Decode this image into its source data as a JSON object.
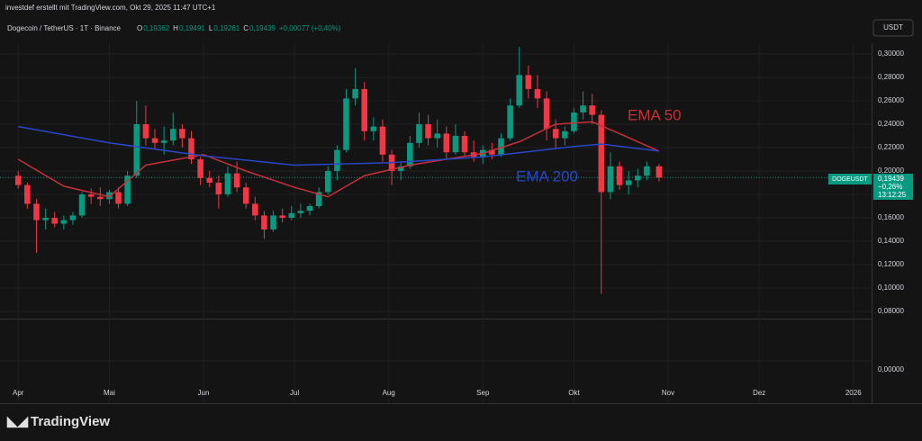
{
  "header": {
    "credit": "investdef erstellt mit TradingView.com, Okt 29, 2025 11:47 UTC+1"
  },
  "legend": {
    "symbol": "Dogecoin / TetherUS · 1T · Binance",
    "ohlc": [
      {
        "label": "O",
        "value": "0,19362"
      },
      {
        "label": "H",
        "value": "0,19491"
      },
      {
        "label": "L",
        "value": "0,19261"
      },
      {
        "label": "C",
        "value": "0,19439"
      }
    ],
    "change": "+0,00077 (+0,40%)"
  },
  "currency": "USDT",
  "price_tag": {
    "symbol": "DOGEUSDT",
    "price": "0,19439",
    "change": "−0,26%",
    "countdown": "13:12:25"
  },
  "footer": {
    "brand": "TradingView"
  },
  "chart_data": {
    "type": "candlestick",
    "up_color": "#089981",
    "down_color": "#f23645",
    "x": [
      "2025-04-01",
      "2025-04-04",
      "2025-04-07",
      "2025-04-10",
      "2025-04-13",
      "2025-04-16",
      "2025-04-19",
      "2025-04-22",
      "2025-04-25",
      "2025-04-28",
      "2025-05-01",
      "2025-05-04",
      "2025-05-07",
      "2025-05-10",
      "2025-05-13",
      "2025-05-16",
      "2025-05-19",
      "2025-05-22",
      "2025-05-25",
      "2025-05-28",
      "2025-05-31",
      "2025-06-03",
      "2025-06-06",
      "2025-06-09",
      "2025-06-12",
      "2025-06-15",
      "2025-06-18",
      "2025-06-21",
      "2025-06-24",
      "2025-06-27",
      "2025-06-30",
      "2025-07-03",
      "2025-07-06",
      "2025-07-09",
      "2025-07-12",
      "2025-07-15",
      "2025-07-18",
      "2025-07-21",
      "2025-07-24",
      "2025-07-27",
      "2025-07-30",
      "2025-08-02",
      "2025-08-05",
      "2025-08-08",
      "2025-08-11",
      "2025-08-14",
      "2025-08-17",
      "2025-08-20",
      "2025-08-23",
      "2025-08-26",
      "2025-08-29",
      "2025-09-01",
      "2025-09-04",
      "2025-09-07",
      "2025-09-10",
      "2025-09-13",
      "2025-09-16",
      "2025-09-19",
      "2025-09-22",
      "2025-09-25",
      "2025-09-28",
      "2025-10-01",
      "2025-10-04",
      "2025-10-07",
      "2025-10-10",
      "2025-10-13",
      "2025-10-16",
      "2025-10-19",
      "2025-10-22",
      "2025-10-25",
      "2025-10-29"
    ],
    "open": [
      0.196,
      0.188,
      0.172,
      0.158,
      0.16,
      0.155,
      0.158,
      0.162,
      0.18,
      0.178,
      0.176,
      0.182,
      0.172,
      0.196,
      0.24,
      0.228,
      0.224,
      0.226,
      0.236,
      0.228,
      0.21,
      0.194,
      0.19,
      0.18,
      0.198,
      0.186,
      0.172,
      0.162,
      0.15,
      0.162,
      0.16,
      0.164,
      0.166,
      0.17,
      0.182,
      0.2,
      0.218,
      0.262,
      0.27,
      0.234,
      0.238,
      0.214,
      0.2,
      0.204,
      0.224,
      0.24,
      0.228,
      0.232,
      0.216,
      0.23,
      0.216,
      0.212,
      0.218,
      0.214,
      0.228,
      0.256,
      0.282,
      0.27,
      0.262,
      0.236,
      0.228,
      0.234,
      0.25,
      0.256,
      0.248,
      0.182,
      0.204,
      0.188,
      0.192,
      0.196,
      0.204
    ],
    "high": [
      0.2,
      0.19,
      0.176,
      0.168,
      0.165,
      0.162,
      0.165,
      0.182,
      0.185,
      0.186,
      0.184,
      0.186,
      0.2,
      0.26,
      0.256,
      0.236,
      0.238,
      0.25,
      0.24,
      0.234,
      0.212,
      0.2,
      0.196,
      0.204,
      0.208,
      0.19,
      0.178,
      0.166,
      0.166,
      0.168,
      0.17,
      0.172,
      0.172,
      0.186,
      0.204,
      0.222,
      0.27,
      0.288,
      0.276,
      0.246,
      0.244,
      0.218,
      0.208,
      0.23,
      0.25,
      0.248,
      0.244,
      0.238,
      0.24,
      0.234,
      0.226,
      0.222,
      0.224,
      0.232,
      0.262,
      0.306,
      0.29,
      0.282,
      0.268,
      0.244,
      0.238,
      0.254,
      0.268,
      0.266,
      0.252,
      0.216,
      0.208,
      0.2,
      0.202,
      0.208,
      0.206
    ],
    "low": [
      0.185,
      0.168,
      0.13,
      0.15,
      0.152,
      0.15,
      0.154,
      0.16,
      0.172,
      0.17,
      0.172,
      0.168,
      0.17,
      0.194,
      0.222,
      0.218,
      0.214,
      0.222,
      0.22,
      0.206,
      0.188,
      0.186,
      0.168,
      0.178,
      0.182,
      0.168,
      0.158,
      0.142,
      0.148,
      0.156,
      0.158,
      0.16,
      0.162,
      0.168,
      0.18,
      0.192,
      0.216,
      0.256,
      0.226,
      0.226,
      0.208,
      0.188,
      0.192,
      0.202,
      0.22,
      0.222,
      0.22,
      0.21,
      0.214,
      0.212,
      0.208,
      0.206,
      0.21,
      0.212,
      0.226,
      0.254,
      0.262,
      0.254,
      0.226,
      0.22,
      0.222,
      0.232,
      0.244,
      0.24,
      0.095,
      0.176,
      0.184,
      0.18,
      0.186,
      0.192,
      0.191
    ],
    "close": [
      0.188,
      0.172,
      0.158,
      0.16,
      0.155,
      0.158,
      0.162,
      0.18,
      0.178,
      0.176,
      0.182,
      0.172,
      0.196,
      0.24,
      0.228,
      0.224,
      0.226,
      0.236,
      0.228,
      0.21,
      0.194,
      0.19,
      0.18,
      0.198,
      0.186,
      0.172,
      0.162,
      0.15,
      0.162,
      0.16,
      0.164,
      0.166,
      0.17,
      0.182,
      0.2,
      0.218,
      0.262,
      0.27,
      0.234,
      0.238,
      0.214,
      0.2,
      0.204,
      0.224,
      0.24,
      0.228,
      0.232,
      0.216,
      0.23,
      0.216,
      0.212,
      0.218,
      0.214,
      0.228,
      0.256,
      0.282,
      0.27,
      0.262,
      0.236,
      0.228,
      0.234,
      0.25,
      0.256,
      0.248,
      0.182,
      0.204,
      0.188,
      0.192,
      0.196,
      0.204,
      0.19439
    ],
    "lines": [
      {
        "name": "EMA 50",
        "color": "#c6303a",
        "x": [
          "2025-04-01",
          "2025-04-16",
          "2025-05-01",
          "2025-05-13",
          "2025-06-01",
          "2025-06-15",
          "2025-07-01",
          "2025-07-12",
          "2025-07-24",
          "2025-08-08",
          "2025-09-01",
          "2025-09-13",
          "2025-09-25",
          "2025-10-07",
          "2025-10-16",
          "2025-10-29"
        ],
        "values": [
          0.21,
          0.187,
          0.178,
          0.205,
          0.214,
          0.2,
          0.186,
          0.178,
          0.196,
          0.205,
          0.215,
          0.225,
          0.24,
          0.242,
          0.232,
          0.217
        ]
      },
      {
        "name": "EMA 200",
        "color": "#2846c8",
        "x": [
          "2025-04-01",
          "2025-05-01",
          "2025-06-01",
          "2025-07-01",
          "2025-08-01",
          "2025-09-01",
          "2025-10-01",
          "2025-10-10",
          "2025-10-29"
        ],
        "values": [
          0.238,
          0.224,
          0.213,
          0.205,
          0.207,
          0.212,
          0.221,
          0.223,
          0.217
        ]
      }
    ],
    "xlim": [
      "2025-03-26",
      "2026-01-07"
    ],
    "xticks": [
      {
        "value": "2025-04-01",
        "label": "Apr"
      },
      {
        "value": "2025-05-01",
        "label": "Mai"
      },
      {
        "value": "2025-06-01",
        "label": "Jun"
      },
      {
        "value": "2025-07-01",
        "label": "Jul"
      },
      {
        "value": "2025-08-01",
        "label": "Aug"
      },
      {
        "value": "2025-09-01",
        "label": "Sep"
      },
      {
        "value": "2025-10-01",
        "label": "Okt"
      },
      {
        "value": "2025-11-01",
        "label": "Nov"
      },
      {
        "value": "2025-12-01",
        "label": "Dez"
      },
      {
        "value": "2026-01-01",
        "label": "2026"
      }
    ],
    "ylim": [
      0.0739,
      0.3092
    ],
    "yticks": [
      {
        "value": 0.08,
        "label": "0,08000"
      },
      {
        "value": 0.1,
        "label": "0,10000"
      },
      {
        "value": 0.12,
        "label": "0,12000"
      },
      {
        "value": 0.14,
        "label": "0,14000"
      },
      {
        "value": 0.16,
        "label": "0,16000"
      },
      {
        "value": 0.18,
        "label": "0,18000"
      },
      {
        "value": 0.2,
        "label": "0,20000"
      },
      {
        "value": 0.22,
        "label": "0,22000"
      },
      {
        "value": 0.24,
        "label": "0,24000"
      },
      {
        "value": 0.26,
        "label": "0,26000"
      },
      {
        "value": 0.28,
        "label": "0,28000"
      },
      {
        "value": 0.3,
        "label": "0,30000"
      }
    ],
    "pane2_yticks": [
      {
        "value": 0,
        "label": "0,00000"
      }
    ],
    "grid": true
  }
}
